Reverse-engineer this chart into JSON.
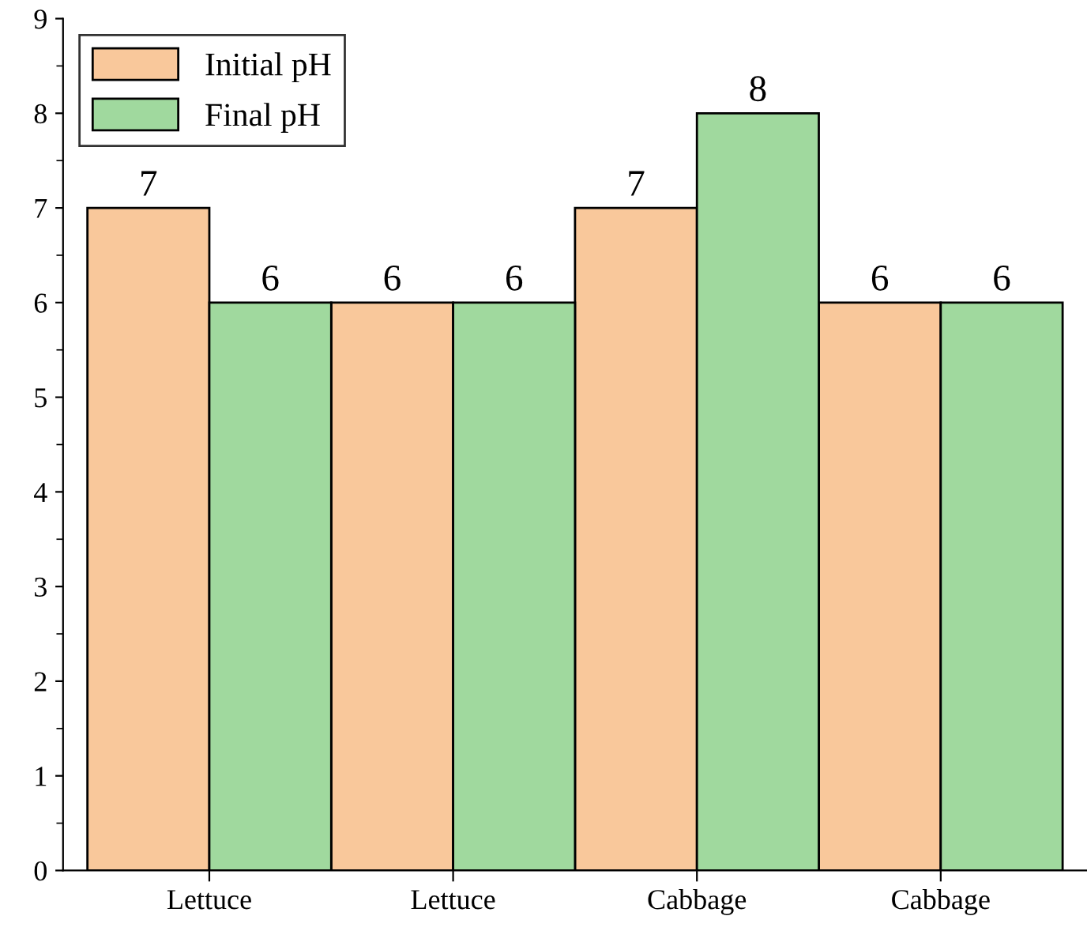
{
  "chart_data": {
    "type": "bar",
    "categories": [
      "Lettuce",
      "Lettuce",
      "Cabbage",
      "Cabbage"
    ],
    "series": [
      {
        "name": "Initial pH",
        "color": "#f9c89b",
        "values": [
          7,
          6,
          7,
          6
        ]
      },
      {
        "name": "Final pH",
        "color": "#a0d99e",
        "values": [
          6,
          6,
          8,
          6
        ]
      }
    ],
    "ylim": [
      0,
      9
    ],
    "yticks": [
      0,
      1,
      2,
      3,
      4,
      5,
      6,
      7,
      8,
      9
    ],
    "data_labels": true,
    "legend": "top left",
    "grid": false
  }
}
